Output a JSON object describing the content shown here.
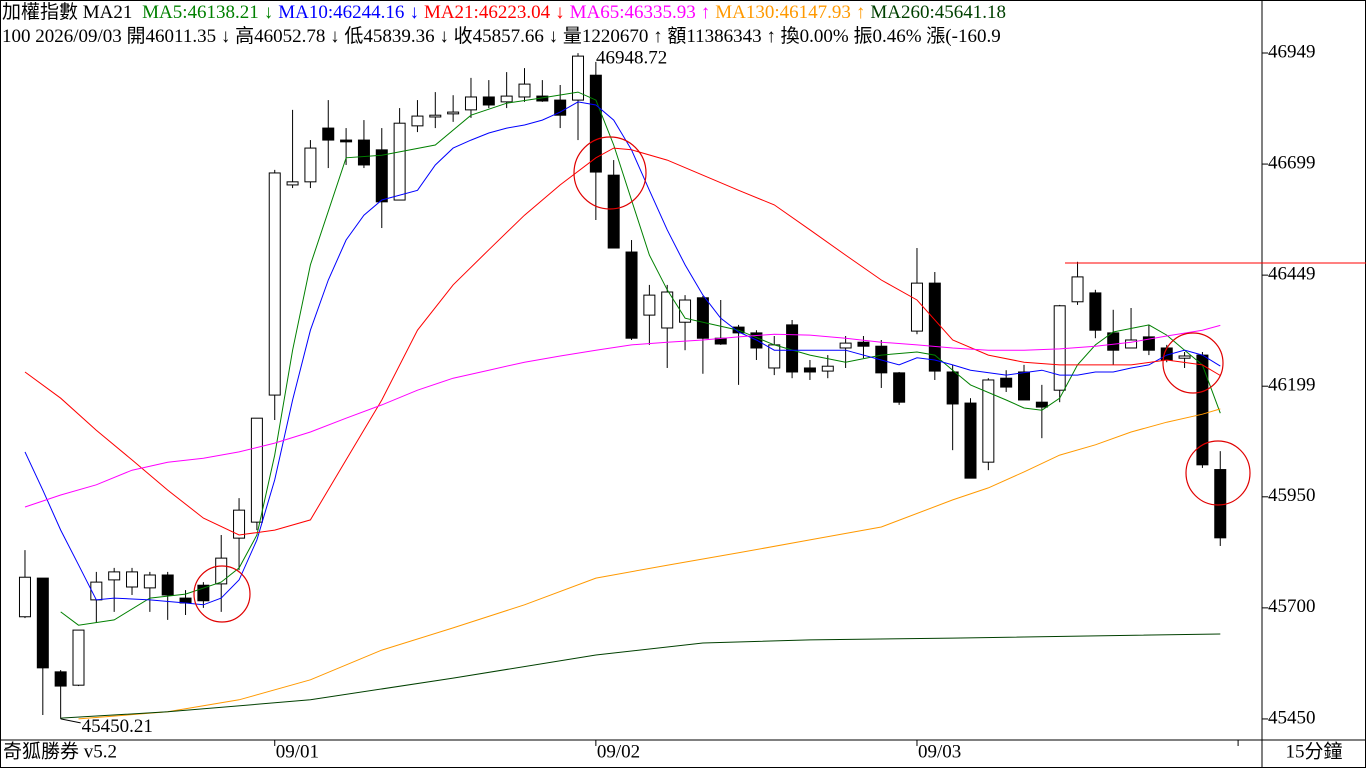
{
  "chart_data": {
    "type": "candlestick",
    "title": "加權指數 MA21",
    "info": "100 2026/09/03 開46011.35 ↓ 高46052.78 ↓ 低45839.36 ↓ 收45857.66 ↓ 量1220670 ↑ 額11386343 ↑ 換0.00% 振0.46% 漲(-160.9",
    "footer_left": "奇狐勝券 v5.2",
    "footer_right": "15分鐘",
    "xlim": [
      -1.4,
      69.34
    ],
    "xticks": [
      {
        "value": 14,
        "label": "09/01"
      },
      {
        "value": 32,
        "label": "09/02"
      },
      {
        "value": 50,
        "label": "09/03"
      },
      {
        "value": 68,
        "label": null
      }
    ],
    "ylim": [
      45402.6,
      47068.3
    ],
    "yticks": [
      46949,
      46699,
      46449,
      46199,
      45950,
      45700,
      45450
    ],
    "candles": {
      "up_color": "#ffffff",
      "down_color": "#000000",
      "open": [
        45680,
        45767,
        45556,
        45526,
        45718,
        45763,
        45747,
        45745,
        45774,
        45722,
        45751,
        45754,
        45857,
        45893,
        46179,
        46652,
        46659,
        46780,
        46753,
        46753,
        46731,
        46618,
        46785,
        46805,
        46812,
        46821,
        46850,
        46839,
        46850,
        46852,
        46843,
        46843,
        46899,
        46674,
        46501,
        46359,
        46330,
        46343,
        46398,
        46307,
        46332,
        46319,
        46240,
        46337,
        46240,
        46233,
        46285,
        46298,
        46289,
        46229,
        46323,
        46431,
        46231,
        46161,
        46028,
        46217,
        46231,
        46163,
        46190,
        46389,
        46409,
        46319,
        46285,
        46310,
        46285,
        46262,
        46269,
        46011.35
      ],
      "high": [
        45830,
        45767,
        45560,
        45650,
        45781,
        45790,
        45790,
        45781,
        45781,
        45740,
        45758,
        45864,
        45947,
        46127,
        46686,
        46821,
        46753,
        46843,
        46780,
        46798,
        46780,
        46825,
        46843,
        46861,
        46854,
        46893,
        46888,
        46906,
        46915,
        46888,
        46877,
        46948.72,
        46929,
        46708,
        46528,
        46427,
        46427,
        46404,
        46402,
        46393,
        46337,
        46325,
        46312,
        46348,
        46258,
        46269,
        46312,
        46312,
        46303,
        46231,
        46510,
        46456,
        46247,
        46172,
        46217,
        46235,
        46247,
        46202,
        46382,
        46479,
        46416,
        46371,
        46375,
        46337,
        46292,
        46276,
        46276,
        46052.78
      ],
      "low": [
        45677,
        45459,
        45450.21,
        45524,
        45666,
        45691,
        45729,
        45691,
        45673,
        45684,
        45700,
        45691,
        45785,
        45875,
        46123,
        46645,
        46645,
        46690,
        46697,
        46690,
        46555,
        46618,
        46771,
        46780,
        46794,
        46803,
        46825,
        46825,
        46839,
        46839,
        46780,
        46753,
        46573,
        46510,
        46303,
        46292,
        46240,
        46280,
        46227,
        46292,
        46202,
        46258,
        46224,
        46217,
        46213,
        46217,
        46240,
        46262,
        46195,
        46157,
        46316,
        46213,
        46055,
        45992,
        46010,
        46186,
        46168,
        46082,
        46163,
        46382,
        46307,
        46247,
        46285,
        46269,
        46253,
        46240,
        46015,
        45839.36
      ],
      "close": [
        45769,
        45565,
        45524,
        45650,
        45758,
        45781,
        45781,
        45774,
        45729,
        45711,
        45716,
        45812,
        45920,
        46127,
        46679,
        46659,
        46735,
        46753,
        46749,
        46697,
        46614,
        46791,
        46807,
        46809,
        46816,
        46850,
        46832,
        46852,
        46879,
        46841,
        46809,
        46942,
        46681,
        46510,
        46307,
        46404,
        46411,
        46393,
        46307,
        46294,
        46319,
        46285,
        46292,
        46231,
        46231,
        46244,
        46296,
        46289,
        46229,
        46163,
        46431,
        46233,
        46159,
        45992,
        46213,
        46197,
        46168,
        46152,
        46380,
        46445,
        46325,
        46280,
        46303,
        46280,
        46258,
        46267,
        46022,
        45857.66
      ]
    },
    "series": [
      {
        "legend": "MA5:46138.21",
        "trend": "↓",
        "color": "#008000",
        "x": [
          2,
          3,
          5,
          7,
          9,
          11,
          12,
          13,
          14,
          15,
          16,
          18,
          20,
          23,
          25,
          27,
          29,
          31,
          32,
          33,
          34,
          35,
          36,
          37,
          38,
          40,
          42,
          44,
          46,
          48,
          50,
          51,
          52,
          53,
          55,
          56,
          57,
          58,
          59,
          60,
          61,
          63,
          64,
          65,
          66,
          67
        ],
        "values": [
          45691,
          45661,
          45673,
          45722,
          45731,
          45758,
          45790,
          45864,
          46044,
          46280,
          46472,
          46713,
          46719,
          46742,
          46809,
          46836,
          46848,
          46861,
          46843,
          46742,
          46618,
          46494,
          46416,
          46352,
          46343,
          46325,
          46292,
          46269,
          46253,
          46269,
          46276,
          46269,
          46235,
          46202,
          46168,
          46150,
          46145,
          46172,
          46247,
          46292,
          46321,
          46337,
          46314,
          46280,
          46247,
          46138.21
        ]
      },
      {
        "legend": "MA10:46244.16",
        "trend": "↓",
        "color": "#0000ff",
        "x": [
          0,
          1,
          2,
          3,
          4,
          5,
          7,
          9,
          10,
          11,
          12,
          13,
          14,
          15,
          16,
          17,
          18,
          19,
          20,
          22,
          23,
          24,
          25,
          26,
          27,
          28,
          29,
          30,
          31,
          32,
          33,
          34,
          35,
          36,
          37,
          38,
          39,
          40,
          41,
          42,
          44,
          46,
          48,
          49,
          50,
          51,
          52,
          53,
          55,
          57,
          58,
          59,
          60,
          61,
          62,
          63,
          64,
          65,
          66,
          67
        ],
        "values": [
          46051,
          45965,
          45875,
          45797,
          45718,
          45722,
          45718,
          45711,
          45707,
          45722,
          45763,
          45853,
          45988,
          46168,
          46325,
          46438,
          46528,
          46584,
          46618,
          46640,
          46697,
          46735,
          46753,
          46769,
          46780,
          46787,
          46798,
          46816,
          46839,
          46832,
          46798,
          46731,
          46640,
          46551,
          46472,
          46404,
          46352,
          46321,
          46303,
          46280,
          46280,
          46280,
          46258,
          46247,
          46263,
          46258,
          46247,
          46235,
          46224,
          46235,
          46224,
          46224,
          46231,
          46231,
          46240,
          46247,
          46269,
          46280,
          46269,
          46244.16
        ]
      },
      {
        "legend": "MA21:46223.04",
        "trend": "↓",
        "color": "#ff0000",
        "x": [
          0,
          2,
          4,
          6,
          8,
          10,
          12,
          14,
          16,
          18,
          20,
          22,
          24,
          26,
          28,
          30,
          32,
          33,
          34,
          36,
          38,
          40,
          42,
          44,
          46,
          48,
          50,
          52,
          54,
          56,
          58,
          60,
          62,
          64,
          66,
          67
        ],
        "values": [
          46231,
          46172,
          46100,
          46033,
          45965,
          45902,
          45864,
          45875,
          45898,
          46033,
          46168,
          46325,
          46427,
          46506,
          46584,
          46652,
          46713,
          46735,
          46731,
          46708,
          46674,
          46640,
          46607,
          46551,
          46494,
          46438,
          46393,
          46303,
          46269,
          46253,
          46247,
          46247,
          46247,
          46258,
          46247,
          46223.04
        ]
      },
      {
        "legend": "MA65:46335.93",
        "trend": "↑",
        "color": "#ff00ff",
        "x": [
          0,
          2,
          4,
          6,
          8,
          10,
          12,
          14,
          16,
          18,
          20,
          22,
          24,
          26,
          28,
          30,
          32,
          34,
          36,
          38,
          40,
          42,
          44,
          46,
          48,
          50,
          52,
          54,
          56,
          58,
          60,
          62,
          64,
          66,
          67
        ],
        "values": [
          45927,
          45954,
          45977,
          46010,
          46028,
          46037,
          46051,
          46071,
          46096,
          46127,
          46157,
          46190,
          46217,
          46235,
          46253,
          46267,
          46280,
          46292,
          46298,
          46303,
          46310,
          46316,
          46314,
          46307,
          46298,
          46292,
          46285,
          46280,
          46280,
          46283,
          46289,
          46298,
          46312,
          46325,
          46335.93
        ]
      },
      {
        "legend": "MA130:46147.93",
        "trend": "↑",
        "color": "#ff9900",
        "x": [
          3,
          8,
          12,
          16,
          20,
          24,
          28,
          32,
          36,
          40,
          44,
          48,
          52,
          54,
          56,
          58,
          60,
          62,
          64,
          66,
          67
        ],
        "values": [
          45450,
          45466,
          45493,
          45538,
          45605,
          45655,
          45707,
          45767,
          45796,
          45824,
          45853,
          45882,
          45943,
          45970,
          46006,
          46044,
          46067,
          46096,
          46118,
          46136,
          46147.93
        ]
      },
      {
        "legend": "MA260:45641.18",
        "color": "#004000",
        "x": [
          2,
          8,
          16,
          24,
          32,
          38,
          44,
          52,
          60,
          67
        ],
        "values": [
          45452,
          45466,
          45493,
          45542,
          45594,
          45621,
          45628,
          45632,
          45637,
          45641.18
        ]
      }
    ]
  }
}
